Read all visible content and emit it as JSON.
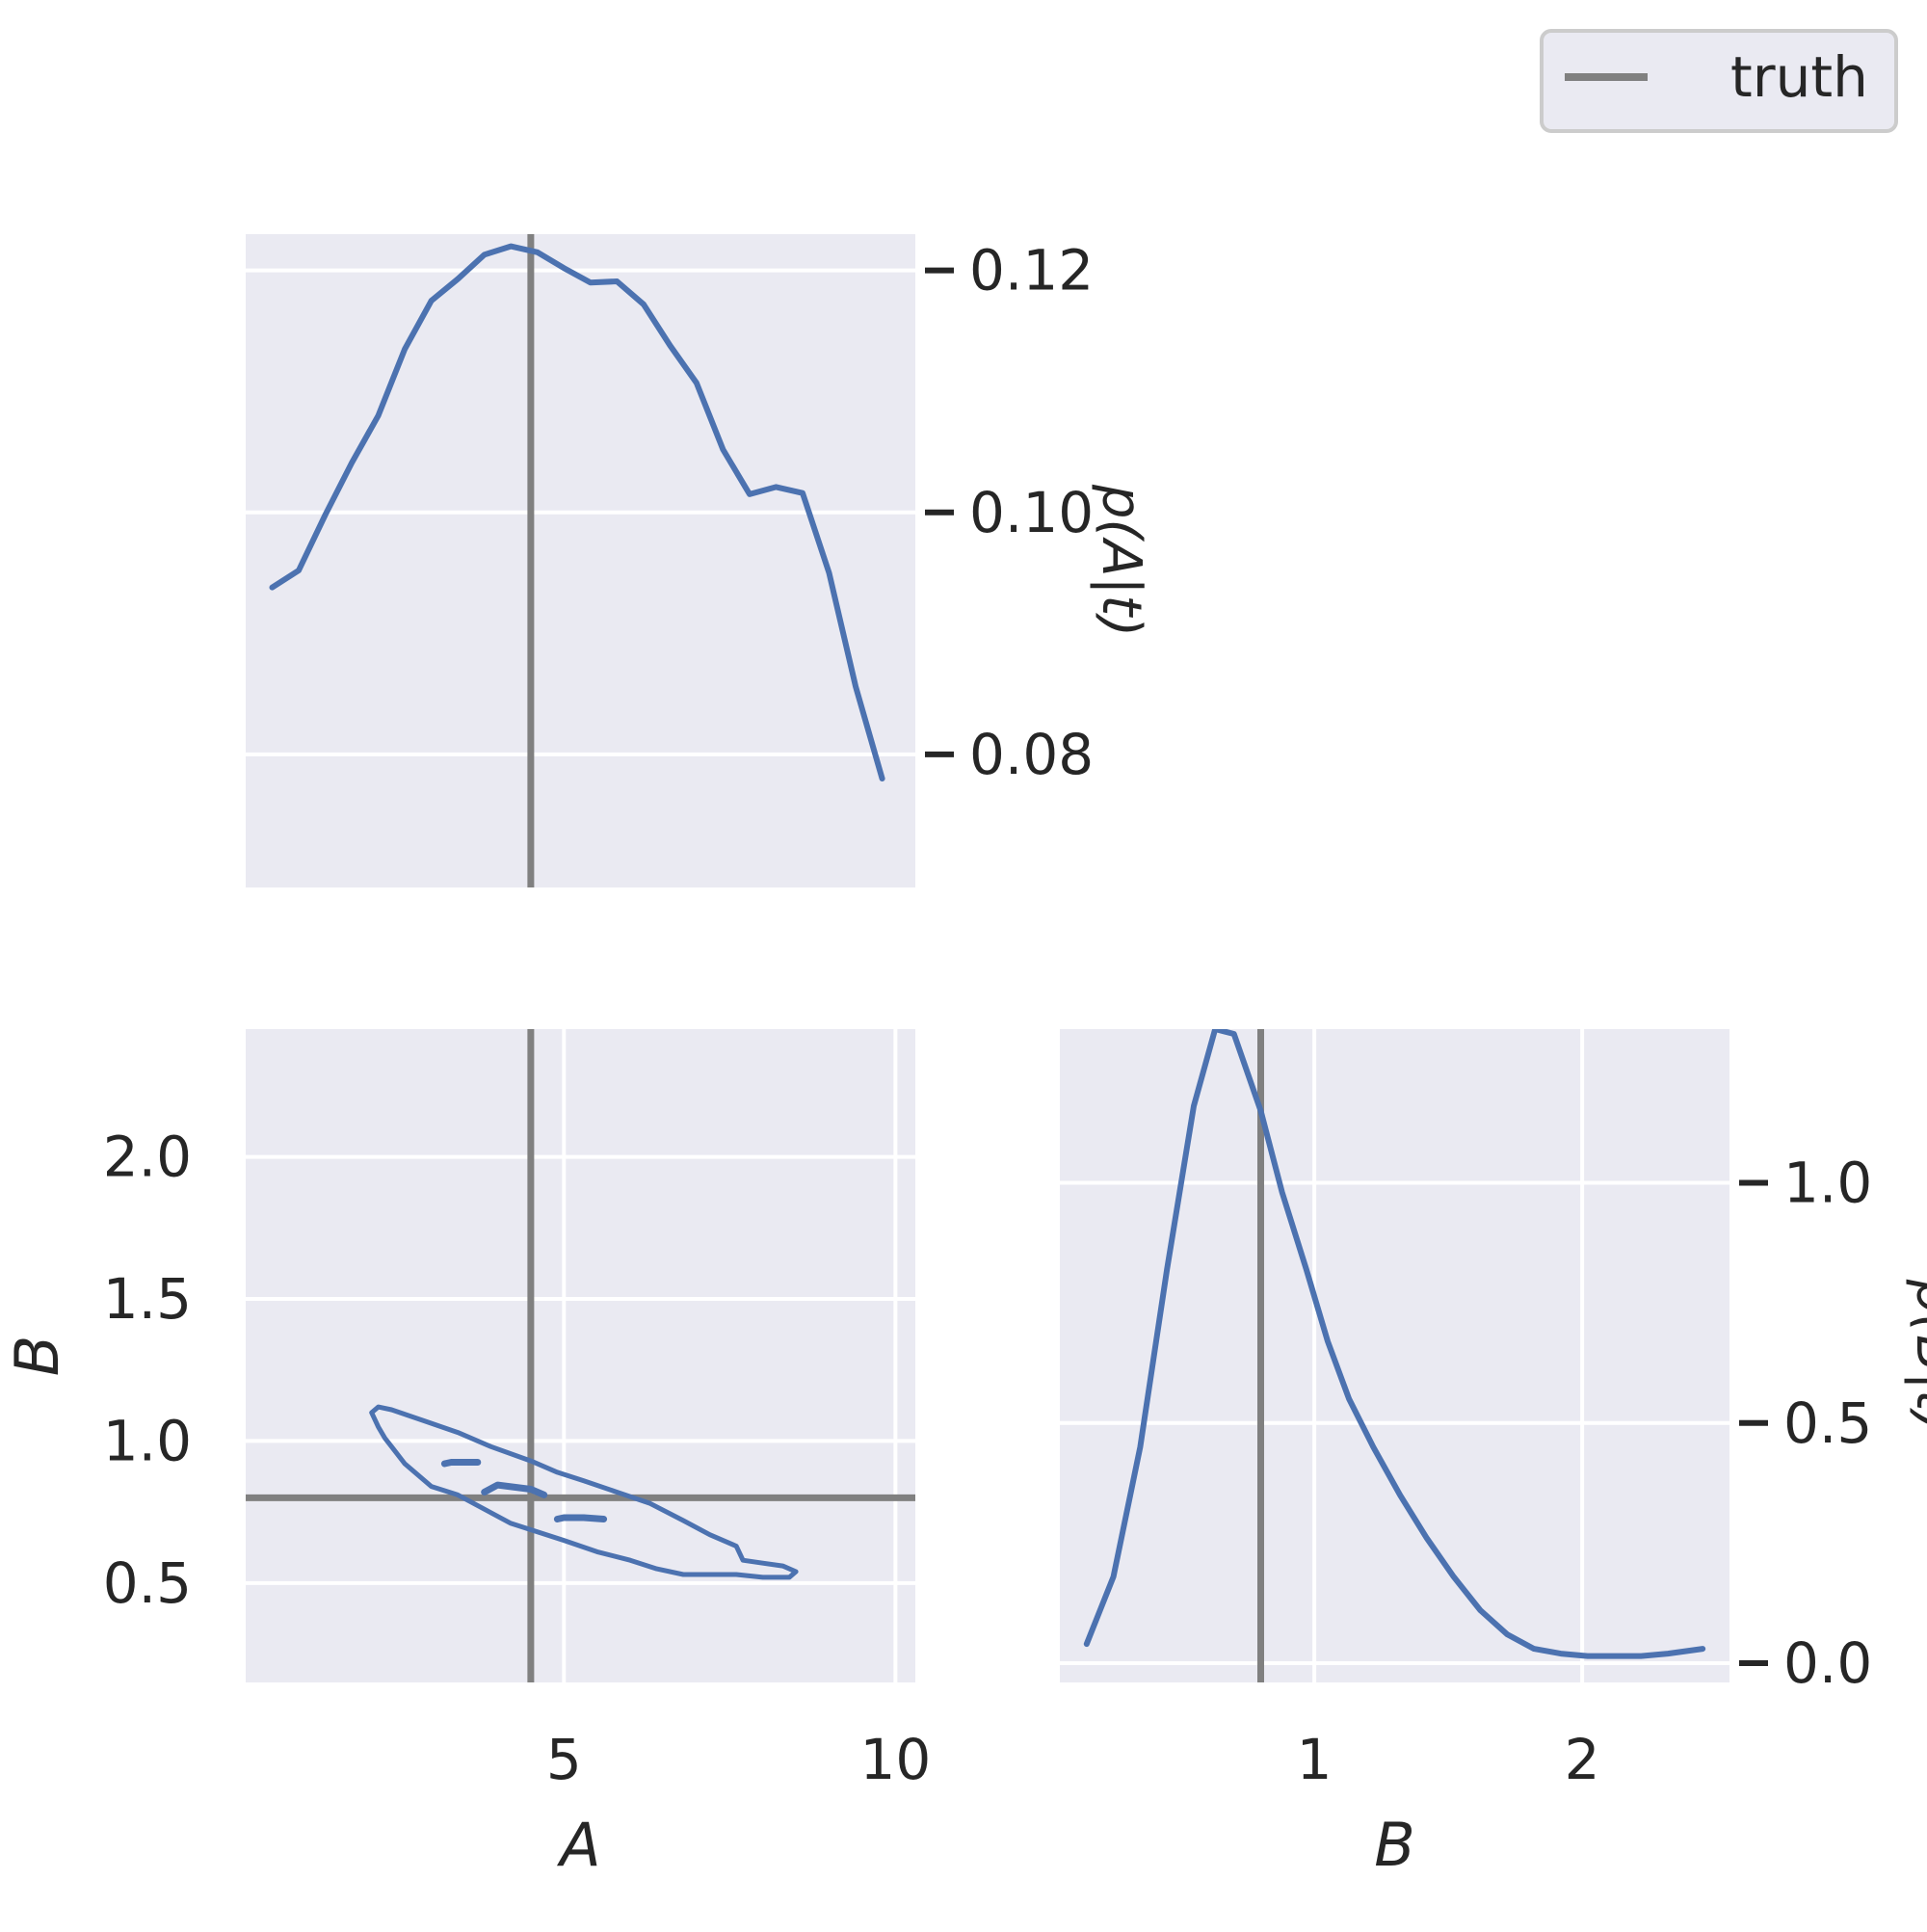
{
  "legend": {
    "label": "truth",
    "placement": "top-right"
  },
  "colors": {
    "series": "#4c72b0",
    "truth": "#808080",
    "panel_bg": "#eaeaf2",
    "grid": "#ffffff"
  },
  "chart_data": [
    {
      "type": "line",
      "panel": "top-left",
      "ylabel": "p(A|t)",
      "xlim": [
        0.2,
        10.3
      ],
      "ylim": [
        0.069,
        0.123
      ],
      "xticks": [],
      "yticks": [
        0.08,
        0.1,
        0.12
      ],
      "ytick_labels": [
        "0.08",
        "0.10",
        "0.12"
      ],
      "ytick_side": "right",
      "grid": true,
      "truth_x": 4.5,
      "x": [
        0.6,
        1.0,
        1.4,
        1.8,
        2.2,
        2.6,
        3.0,
        3.4,
        3.8,
        4.2,
        4.6,
        5.0,
        5.4,
        5.8,
        6.2,
        6.6,
        7.0,
        7.4,
        7.8,
        8.2,
        8.6,
        9.0,
        9.4,
        9.8
      ],
      "y": [
        0.0938,
        0.0952,
        0.0998,
        0.1041,
        0.108,
        0.1135,
        0.1175,
        0.1193,
        0.1213,
        0.122,
        0.1215,
        0.1202,
        0.119,
        0.1191,
        0.1172,
        0.1138,
        0.1107,
        0.1052,
        0.1015,
        0.1021,
        0.1016,
        0.095,
        0.0856,
        0.078
      ]
    },
    {
      "type": "line",
      "panel": "bottom-left",
      "xlabel": "A",
      "ylabel": "B",
      "xlim": [
        0.2,
        10.3
      ],
      "ylim": [
        0.15,
        2.45
      ],
      "xticks": [
        5,
        10
      ],
      "xtick_labels": [
        "5",
        "10"
      ],
      "yticks": [
        0.5,
        1.0,
        1.5,
        2.0
      ],
      "ytick_labels": [
        "0.5",
        "1.0",
        "1.5",
        "2.0"
      ],
      "grid": true,
      "truth_x": 4.5,
      "truth_y": 0.8,
      "contours": [
        {
          "x": [
            2.1,
            2.2,
            2.4,
            2.9,
            3.4,
            3.9,
            4.5,
            4.9,
            5.3,
            5.8,
            6.3,
            6.8,
            7.2,
            7.6,
            7.7,
            8.0,
            8.3,
            8.5,
            8.4,
            8.0,
            7.6,
            7.2,
            6.8,
            6.4,
            6.0,
            5.5,
            5.0,
            4.6,
            4.2,
            3.8,
            3.4,
            3.0,
            2.6,
            2.4,
            2.3,
            2.2,
            2.1
          ],
          "y": [
            1.1,
            1.12,
            1.11,
            1.07,
            1.03,
            0.98,
            0.93,
            0.89,
            0.86,
            0.82,
            0.78,
            0.72,
            0.67,
            0.63,
            0.58,
            0.57,
            0.56,
            0.54,
            0.52,
            0.52,
            0.53,
            0.53,
            0.53,
            0.55,
            0.58,
            0.61,
            0.65,
            0.68,
            0.71,
            0.76,
            0.81,
            0.84,
            0.92,
            0.98,
            1.01,
            1.05,
            1.1
          ]
        },
        {
          "x": [
            3.2,
            3.3,
            3.7
          ],
          "y": [
            0.92,
            0.925,
            0.925
          ]
        },
        {
          "x": [
            3.8,
            4.0,
            4.5,
            4.7
          ],
          "y": [
            0.82,
            0.845,
            0.83,
            0.81
          ]
        },
        {
          "x": [
            4.9,
            5.0,
            5.3,
            5.6
          ],
          "y": [
            0.725,
            0.73,
            0.73,
            0.725
          ]
        }
      ]
    },
    {
      "type": "line",
      "panel": "bottom-right",
      "xlabel": "B",
      "ylabel": "p(B|t)",
      "xlim": [
        0.05,
        2.55
      ],
      "ylim": [
        -0.04,
        1.32
      ],
      "xticks": [
        1,
        2
      ],
      "xtick_labels": [
        "1",
        "2"
      ],
      "yticks": [
        0.0,
        0.5,
        1.0
      ],
      "ytick_labels": [
        "0.0",
        "0.5",
        "1.0"
      ],
      "ytick_side": "right",
      "grid": true,
      "truth_x": 0.8,
      "x": [
        0.15,
        0.25,
        0.35,
        0.45,
        0.55,
        0.63,
        0.7,
        0.8,
        0.88,
        0.97,
        1.05,
        1.13,
        1.22,
        1.32,
        1.42,
        1.52,
        1.62,
        1.72,
        1.82,
        1.92,
        2.02,
        2.12,
        2.22,
        2.32,
        2.45
      ],
      "y": [
        0.04,
        0.18,
        0.45,
        0.82,
        1.16,
        1.32,
        1.31,
        1.15,
        0.98,
        0.82,
        0.67,
        0.55,
        0.45,
        0.35,
        0.26,
        0.18,
        0.11,
        0.06,
        0.03,
        0.02,
        0.015,
        0.015,
        0.015,
        0.02,
        0.03
      ]
    }
  ]
}
